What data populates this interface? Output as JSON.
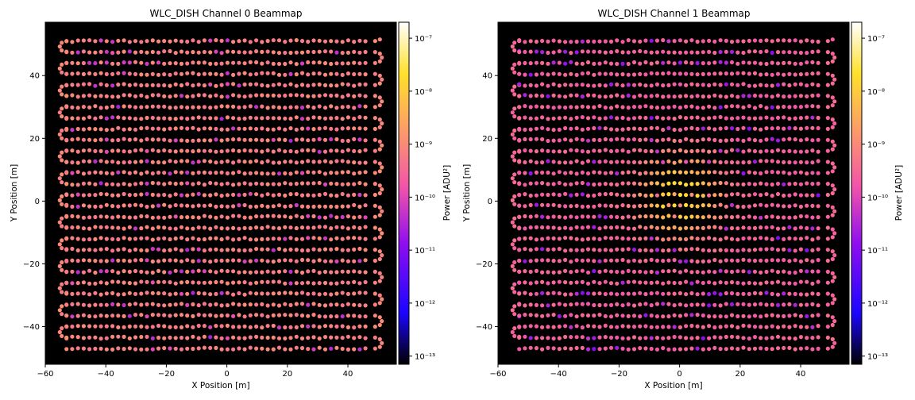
{
  "chart_data": [
    {
      "type": "scatter",
      "title": "WLC_DISH Channel 0 Beammap",
      "xlabel": "X Position [m]",
      "ylabel": "Y Position [m]",
      "xlim": [
        -60,
        56
      ],
      "ylim": [
        -52,
        57
      ],
      "xticks": [
        -60,
        -40,
        -20,
        0,
        20,
        40
      ],
      "yticks": [
        -40,
        -20,
        0,
        20,
        40
      ],
      "background": "#000000",
      "colormap": "gnuplot2",
      "colorbar": {
        "label": "Power [ADU²]",
        "scale": "log",
        "range": [
          7e-14,
          2e-07
        ],
        "ticks": [
          "10⁻⁷",
          "10⁻⁸",
          "10⁻⁹",
          "10⁻¹⁰",
          "10⁻¹¹",
          "10⁻¹²",
          "10⁻¹³"
        ],
        "tick_exponents": [
          -7,
          -8,
          -9,
          -10,
          -11,
          -12,
          -13
        ]
      },
      "scan": {
        "pattern": "serpentine raster",
        "x_range": [
          -53,
          49
        ],
        "y_range": [
          -47,
          51
        ],
        "row_spacing_m": 3.5
      },
      "field": {
        "baseline_log10_power": -9.15,
        "beam_peak_log10_power": null
      },
      "notes": "approximately uniform ~1e-9 power across map with scattered low (~1e-10) points"
    },
    {
      "type": "scatter",
      "title": "WLC_DISH Channel 1 Beammap",
      "xlabel": "X Position [m]",
      "ylabel": "Y Position [m]",
      "xlim": [
        -60,
        56
      ],
      "ylim": [
        -52,
        57
      ],
      "xticks": [
        -60,
        -40,
        -20,
        0,
        20,
        40
      ],
      "yticks": [
        -40,
        -20,
        0,
        20,
        40
      ],
      "background": "#000000",
      "colormap": "gnuplot2",
      "colorbar": {
        "label": "Power [ADU²]",
        "scale": "log",
        "range": [
          7e-14,
          2e-07
        ],
        "ticks": [
          "10⁻⁷",
          "10⁻⁸",
          "10⁻⁹",
          "10⁻¹⁰",
          "10⁻¹¹",
          "10⁻¹²",
          "10⁻¹³"
        ],
        "tick_exponents": [
          -7,
          -8,
          -9,
          -10,
          -11,
          -12,
          -13
        ]
      },
      "scan": {
        "pattern": "serpentine raster",
        "x_range": [
          -53,
          49
        ],
        "y_range": [
          -47,
          51
        ],
        "row_spacing_m": 3.5
      },
      "field": {
        "baseline_log10_power": -9.6,
        "beam_center": [
          0,
          2
        ],
        "beam_peak_log10_power": -7.6,
        "beam_width_m": 9
      },
      "notes": "bright beam centered near (0, 2) m peaking ~2e-8, background ~1e-10 to 1e-9"
    }
  ]
}
